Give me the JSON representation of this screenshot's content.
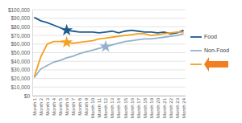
{
  "chart_data": {
    "type": "line",
    "categories": [
      "Month 1",
      "Month 2",
      "Month 3",
      "Month 4",
      "Month 5",
      "Month 6",
      "Month 7",
      "Month 8",
      "Month 9",
      "Month 10",
      "Month 11",
      "Month 12",
      "Month 13",
      "Month 14",
      "Month 15",
      "Month 16",
      "Month 17",
      "Month 18",
      "Month 19",
      "Month 20",
      "Month 21",
      "Month 22",
      "Month 23",
      "Month 24"
    ],
    "series": [
      {
        "name": "Food",
        "color": "#1f5b8e",
        "values": [
          91000,
          87000,
          85000,
          82000,
          79000,
          76000,
          75000,
          74000,
          74000,
          74000,
          73000,
          74000,
          75000,
          73000,
          75000,
          76000,
          75000,
          74000,
          74000,
          73000,
          74000,
          72000,
          73000,
          76000
        ]
      },
      {
        "name": "Non-Food",
        "color": "#93b1cc",
        "values": [
          21000,
          31000,
          35000,
          39000,
          41000,
          44000,
          46000,
          49000,
          51000,
          53000,
          55000,
          57000,
          59000,
          61000,
          63000,
          64000,
          65000,
          66000,
          66000,
          67000,
          68000,
          69000,
          70000,
          72000
        ]
      },
      {
        "color": "#f5a01f",
        "values": [
          22000,
          45000,
          60000,
          63000,
          63000,
          62000,
          61000,
          62000,
          63000,
          64000,
          66000,
          67000,
          68000,
          69000,
          70000,
          71000,
          72000,
          72000,
          70000,
          71000,
          72000,
          73000,
          74000,
          74000
        ]
      },
      {
        "type": "scatter",
        "marker": "star",
        "color": "#1f5b8e",
        "values": [
          null,
          null,
          null,
          null,
          null,
          76000,
          null,
          null,
          null,
          null,
          null,
          null,
          null,
          null,
          null,
          null,
          null,
          null,
          null,
          null,
          null,
          null,
          null,
          null
        ]
      },
      {
        "type": "scatter",
        "marker": "star",
        "color": "#f5a01f",
        "values": [
          null,
          null,
          null,
          null,
          null,
          62000,
          null,
          null,
          null,
          null,
          null,
          null,
          null,
          null,
          null,
          null,
          null,
          null,
          null,
          null,
          null,
          null,
          null,
          null
        ]
      },
      {
        "type": "scatter",
        "marker": "star",
        "color": "#93b1cc",
        "values": [
          null,
          null,
          null,
          null,
          null,
          null,
          null,
          null,
          null,
          null,
          null,
          57000,
          null,
          null,
          null,
          null,
          null,
          null,
          null,
          null,
          null,
          null,
          null,
          null
        ]
      }
    ],
    "ylim": [
      0,
      100000
    ],
    "yticks": [
      {
        "value": 0,
        "label": "$0"
      },
      {
        "value": 10000,
        "label": "$10,000"
      },
      {
        "value": 20000,
        "label": "$20,000"
      },
      {
        "value": 30000,
        "label": "$30,000"
      },
      {
        "value": 40000,
        "label": "$40,000"
      },
      {
        "value": 50000,
        "label": "$50,000"
      },
      {
        "value": 60000,
        "label": "$60,000"
      },
      {
        "value": 70000,
        "label": "$70,000"
      },
      {
        "value": 80000,
        "label": "$80,000"
      },
      {
        "value": 90000,
        "label": "$90,000"
      },
      {
        "value": 100000,
        "label": "$100,000"
      }
    ],
    "grid": true,
    "legend": "right"
  }
}
